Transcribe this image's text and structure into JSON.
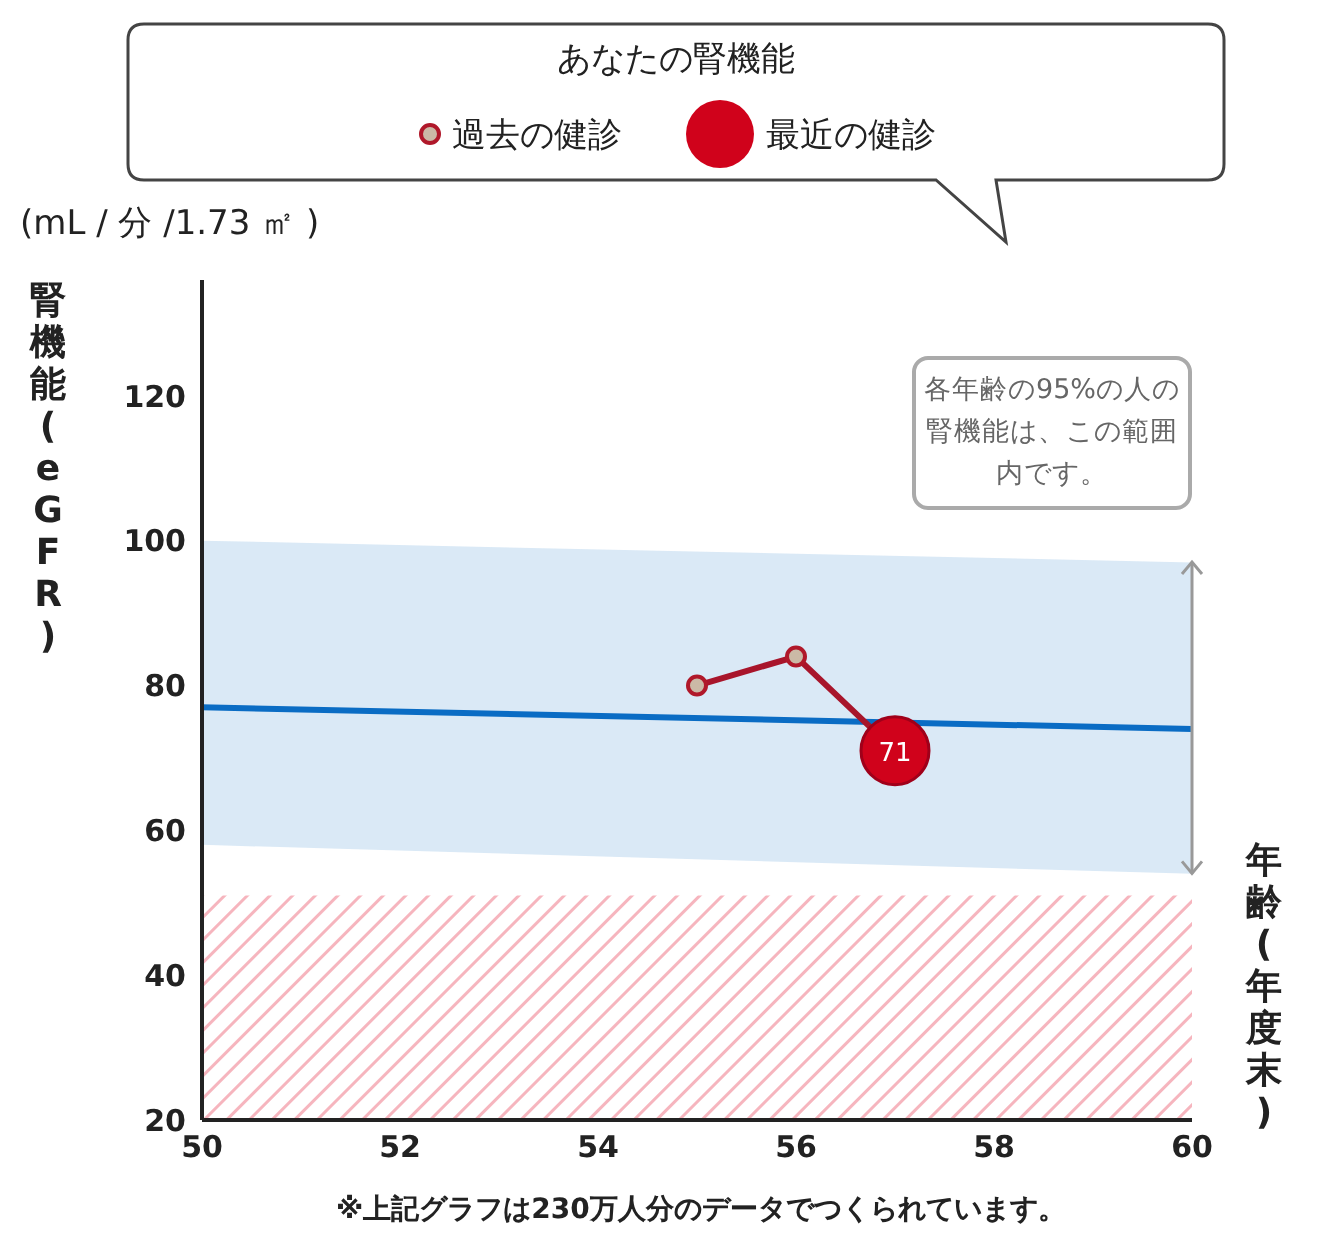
{
  "chart_data": {
    "type": "line",
    "legend_title": "あなたの腎機能",
    "ylabel": "腎機能(eGFR)",
    "xlabel": "年齢(年度末)",
    "xlim": [
      50,
      60
    ],
    "xticks": [
      50,
      52,
      54,
      56,
      58,
      60
    ],
    "ylim": [
      20,
      136
    ],
    "yticks": [
      20,
      40,
      60,
      80,
      100,
      120
    ],
    "grid": false,
    "legend": "top",
    "series": [
      {
        "color": "#0a6cc4",
        "x": [
          50,
          60
        ],
        "values": [
          77,
          74
        ],
        "lower": [
          58,
          54
        ],
        "upper": [
          100,
          97
        ],
        "marker": "none"
      },
      {
        "color": "#a8152b",
        "x": [
          55,
          56,
          57
        ],
        "values": [
          80,
          84,
          71
        ],
        "marker": "none"
      },
      {
        "type": "scatter",
        "name": "過去の健診",
        "color": "#cbb9a6",
        "x": [
          55,
          56
        ],
        "values": [
          80,
          84
        ],
        "marker": "circle"
      },
      {
        "type": "scatter",
        "name": "最近の健診",
        "color": "#d0021b",
        "x": [
          57
        ],
        "values": [
          71
        ],
        "marker": "circle",
        "value_labels": [
          "71"
        ]
      }
    ],
    "bands": [
      {
        "axis": "y",
        "from": 20,
        "to": 51,
        "color": "#f4a3ae"
      }
    ],
    "annotations": [
      "(mL / 分 /1.73 ㎡ )",
      "各年齢の95%の人の腎機能は、この範囲内です。",
      "※上記グラフは230万人分のデータでつくられています。"
    ]
  }
}
